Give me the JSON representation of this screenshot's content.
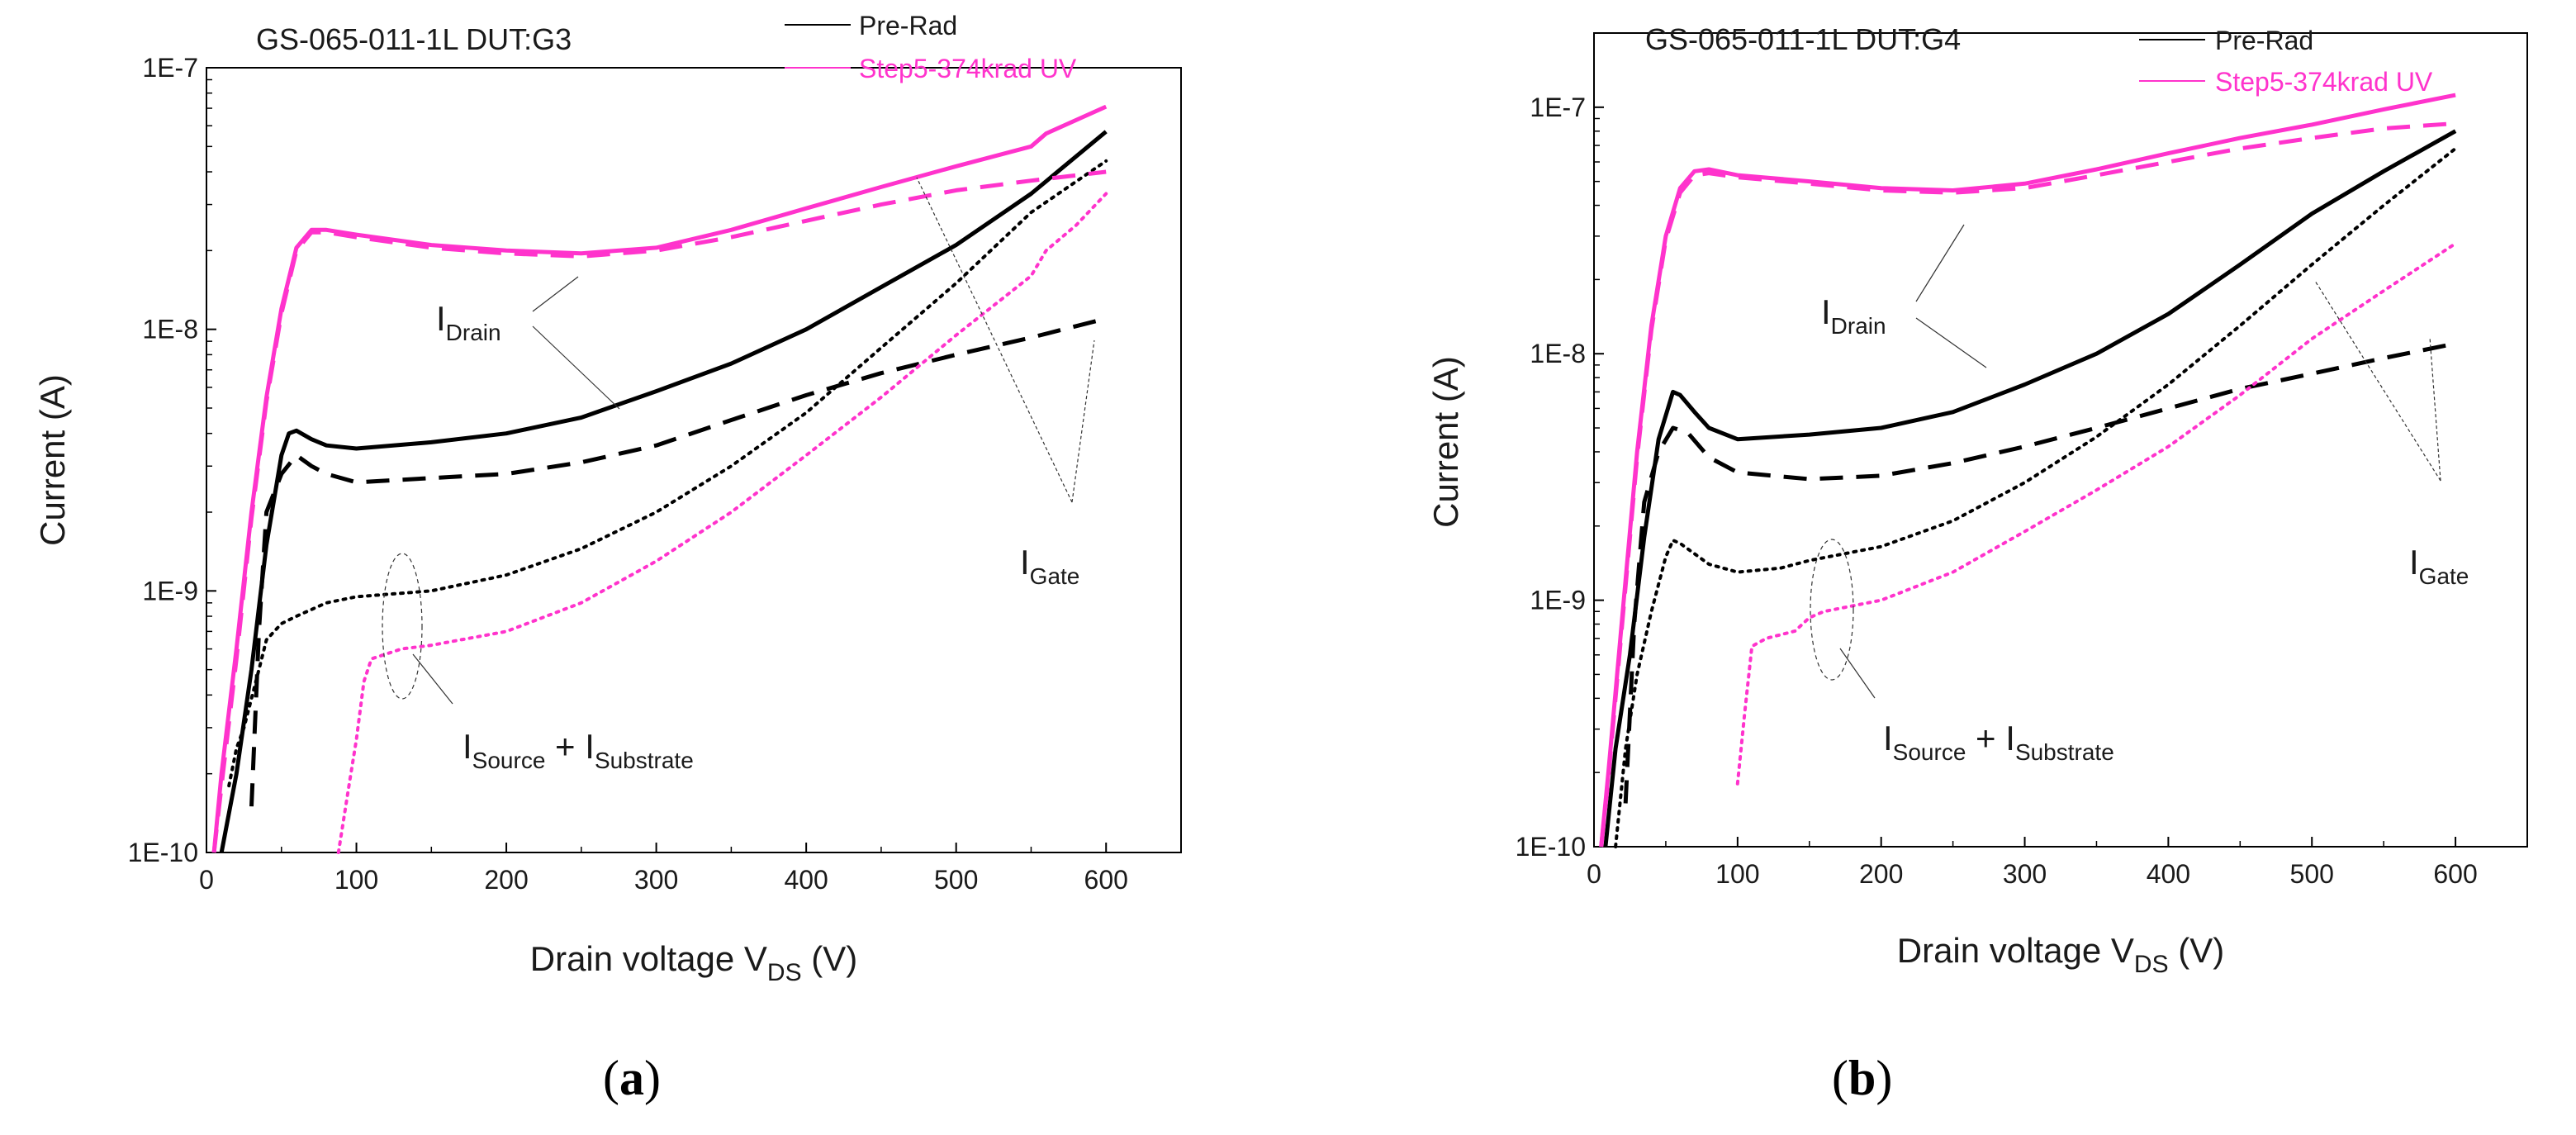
{
  "chart_data": [
    {
      "id": "a",
      "type": "line",
      "title": "GS-065-011-1L  DUT:G3",
      "xlabel_main": "Drain voltage V",
      "xlabel_sub": "DS",
      "xlabel_unit": " (V)",
      "ylabel": "Current (A)",
      "xlim": [
        0,
        650
      ],
      "ylim": [
        1e-10,
        1e-07
      ],
      "yscale": "log",
      "x_ticks": [
        "0",
        "100",
        "200",
        "300",
        "400",
        "500",
        "600"
      ],
      "y_ticks": [
        "1E-10",
        "1E-9",
        "1E-8",
        "1E-7"
      ],
      "legend": [
        {
          "label": "Pre-Rad",
          "color": "#000000"
        },
        {
          "label": "Step5-374krad UV",
          "color": "#ff33cc"
        }
      ],
      "annotations": {
        "drain": {
          "main": "I",
          "sub": "Drain"
        },
        "gate": {
          "main": "I",
          "sub": "Gate"
        },
        "source": {
          "main": "I",
          "sub": "Source",
          "plus": " + ",
          "main2": "I",
          "sub2": "Substrate"
        }
      },
      "series": [
        {
          "name": "I_Drain Pre-Rad",
          "color": "#000000",
          "style": "solid",
          "x": [
            10,
            20,
            30,
            40,
            50,
            55,
            60,
            70,
            80,
            100,
            150,
            200,
            250,
            300,
            350,
            400,
            450,
            500,
            550,
            600
          ],
          "y": [
            1e-10,
            2e-10,
            5e-10,
            1.5e-09,
            3.3e-09,
            4e-09,
            4.1e-09,
            3.8e-09,
            3.6e-09,
            3.5e-09,
            3.7e-09,
            4e-09,
            4.6e-09,
            5.8e-09,
            7.4e-09,
            1e-08,
            1.45e-08,
            2.1e-08,
            3.3e-08,
            5.7e-08
          ]
        },
        {
          "name": "I_Gate Pre-Rad",
          "color": "#000000",
          "style": "dash",
          "x": [
            30,
            35,
            40,
            50,
            60,
            70,
            80,
            100,
            150,
            200,
            250,
            300,
            350,
            400,
            450,
            500,
            550,
            600
          ],
          "y": [
            1.5e-10,
            7e-10,
            2e-09,
            2.8e-09,
            3.3e-09,
            3e-09,
            2.8e-09,
            2.6e-09,
            2.7e-09,
            2.8e-09,
            3.1e-09,
            3.6e-09,
            4.5e-09,
            5.6e-09,
            6.8e-09,
            8e-09,
            9.3e-09,
            1.1e-08
          ]
        },
        {
          "name": "I_Source+I_Substrate Pre-Rad",
          "color": "#000000",
          "style": "dot",
          "x": [
            15,
            20,
            25,
            35,
            40,
            50,
            60,
            80,
            100,
            150,
            200,
            250,
            300,
            350,
            400,
            450,
            500,
            550,
            600
          ],
          "y": [
            1.8e-10,
            2.5e-10,
            3e-10,
            5e-10,
            6.5e-10,
            7.5e-10,
            8e-10,
            9e-10,
            9.5e-10,
            1e-09,
            1.15e-09,
            1.45e-09,
            2e-09,
            3e-09,
            4.8e-09,
            8.5e-09,
            1.5e-08,
            2.8e-08,
            4.4e-08
          ]
        },
        {
          "name": "I_Drain Step5",
          "color": "#ff33cc",
          "style": "solid",
          "x": [
            5,
            10,
            20,
            30,
            40,
            50,
            60,
            70,
            80,
            100,
            150,
            200,
            250,
            300,
            350,
            400,
            450,
            500,
            550,
            560,
            600
          ],
          "y": [
            1e-10,
            2e-10,
            6e-10,
            2e-09,
            5.5e-09,
            1.2e-08,
            2.05e-08,
            2.4e-08,
            2.4e-08,
            2.3e-08,
            2.1e-08,
            2e-08,
            1.95e-08,
            2.05e-08,
            2.4e-08,
            2.9e-08,
            3.5e-08,
            4.2e-08,
            5e-08,
            5.6e-08,
            7.1e-08
          ]
        },
        {
          "name": "I_Gate Step5",
          "color": "#ff33cc",
          "style": "dash",
          "x": [
            5,
            10,
            20,
            30,
            40,
            50,
            60,
            70,
            80,
            100,
            150,
            200,
            250,
            300,
            350,
            400,
            450,
            500,
            550,
            600
          ],
          "y": [
            1e-10,
            1.8e-10,
            5.5e-10,
            1.9e-09,
            5.3e-09,
            1.15e-08,
            2e-08,
            2.35e-08,
            2.35e-08,
            2.25e-08,
            2.05e-08,
            1.95e-08,
            1.9e-08,
            2e-08,
            2.25e-08,
            2.6e-08,
            3e-08,
            3.4e-08,
            3.7e-08,
            4e-08
          ]
        },
        {
          "name": "I_Source+I_Substrate Step5",
          "color": "#ff33cc",
          "style": "dot",
          "x": [
            88,
            95,
            100,
            105,
            110,
            130,
            150,
            200,
            250,
            300,
            350,
            400,
            450,
            500,
            550,
            560,
            580,
            600
          ],
          "y": [
            1e-10,
            1.8e-10,
            2.7e-10,
            4.5e-10,
            5.5e-10,
            6e-10,
            6.2e-10,
            7e-10,
            9e-10,
            1.3e-09,
            2e-09,
            3.3e-09,
            5.5e-09,
            9.5e-09,
            1.6e-08,
            2e-08,
            2.5e-08,
            3.3e-08
          ]
        }
      ]
    },
    {
      "id": "b",
      "type": "line",
      "title": "GS-065-011-1L  DUT:G4",
      "xlabel_main": "Drain voltage V",
      "xlabel_sub": "DS",
      "xlabel_unit": " (V)",
      "ylabel": "Current (A)",
      "xlim": [
        0,
        650
      ],
      "ylim": [
        1e-10,
        2e-07
      ],
      "yscale": "log",
      "x_ticks": [
        "0",
        "100",
        "200",
        "300",
        "400",
        "500",
        "600"
      ],
      "y_ticks": [
        "1E-10",
        "1E-9",
        "1E-8",
        "1E-7"
      ],
      "legend": [
        {
          "label": "Pre-Rad",
          "color": "#000000"
        },
        {
          "label": "Step5-374krad UV",
          "color": "#ff33cc"
        }
      ],
      "annotations": {
        "drain": {
          "main": "I",
          "sub": "Drain"
        },
        "gate": {
          "main": "I",
          "sub": "Gate"
        },
        "source": {
          "main": "I",
          "sub": "Source",
          "plus": " + ",
          "main2": "I",
          "sub2": "Substrate"
        }
      },
      "series": [
        {
          "name": "I_Drain Pre-Rad",
          "color": "#000000",
          "style": "solid",
          "x": [
            8,
            15,
            25,
            35,
            45,
            55,
            60,
            70,
            80,
            100,
            150,
            200,
            250,
            300,
            350,
            400,
            450,
            500,
            550,
            600
          ],
          "y": [
            1e-10,
            2.5e-10,
            6e-10,
            1.8e-09,
            4.5e-09,
            7e-09,
            6.8e-09,
            5.8e-09,
            5e-09,
            4.5e-09,
            4.7e-09,
            5e-09,
            5.8e-09,
            7.5e-09,
            1e-08,
            1.45e-08,
            2.3e-08,
            3.7e-08,
            5.5e-08,
            8e-08
          ]
        },
        {
          "name": "I_Gate Pre-Rad",
          "color": "#000000",
          "style": "dash",
          "x": [
            22,
            28,
            35,
            45,
            55,
            65,
            80,
            100,
            150,
            200,
            250,
            300,
            350,
            400,
            450,
            500,
            550,
            600
          ],
          "y": [
            1.5e-10,
            8e-10,
            2.5e-09,
            4e-09,
            5e-09,
            4.8e-09,
            3.8e-09,
            3.3e-09,
            3.1e-09,
            3.2e-09,
            3.6e-09,
            4.2e-09,
            5e-09,
            6e-09,
            7.2e-09,
            8.3e-09,
            9.6e-09,
            1.1e-08
          ]
        },
        {
          "name": "I_Source+I_Substrate Pre-Rad",
          "color": "#000000",
          "style": "dot",
          "x": [
            15,
            22,
            30,
            40,
            50,
            55,
            60,
            80,
            100,
            130,
            150,
            200,
            250,
            300,
            350,
            400,
            450,
            500,
            550,
            600
          ],
          "y": [
            1e-10,
            2.5e-10,
            5e-10,
            9e-10,
            1.5e-09,
            1.75e-09,
            1.7e-09,
            1.4e-09,
            1.3e-09,
            1.35e-09,
            1.45e-09,
            1.65e-09,
            2.1e-09,
            3e-09,
            4.6e-09,
            7.5e-09,
            1.3e-08,
            2.3e-08,
            4e-08,
            6.8e-08
          ]
        },
        {
          "name": "I_Drain Step5",
          "color": "#ff33cc",
          "style": "solid",
          "x": [
            5,
            10,
            20,
            30,
            40,
            50,
            60,
            70,
            80,
            100,
            150,
            200,
            250,
            300,
            350,
            400,
            450,
            500,
            550,
            600
          ],
          "y": [
            1e-10,
            2e-10,
            9e-10,
            4e-09,
            1.3e-08,
            3e-08,
            4.7e-08,
            5.5e-08,
            5.6e-08,
            5.3e-08,
            5e-08,
            4.7e-08,
            4.6e-08,
            4.9e-08,
            5.6e-08,
            6.5e-08,
            7.5e-08,
            8.5e-08,
            9.8e-08,
            1.12e-07
          ]
        },
        {
          "name": "I_Gate Step5",
          "color": "#ff33cc",
          "style": "dash",
          "x": [
            5,
            10,
            20,
            30,
            40,
            50,
            60,
            70,
            80,
            100,
            150,
            200,
            250,
            300,
            350,
            400,
            450,
            500,
            550,
            600
          ],
          "y": [
            1e-10,
            1.9e-10,
            8.5e-10,
            3.8e-09,
            1.25e-08,
            2.9e-08,
            4.5e-08,
            5.3e-08,
            5.4e-08,
            5.2e-08,
            4.9e-08,
            4.6e-08,
            4.5e-08,
            4.7e-08,
            5.3e-08,
            6e-08,
            6.8e-08,
            7.5e-08,
            8.2e-08,
            8.6e-08
          ]
        },
        {
          "name": "I_Source+I_Substrate Step5",
          "color": "#ff33cc",
          "style": "dot",
          "x": [
            100,
            105,
            110,
            120,
            140,
            150,
            160,
            200,
            250,
            300,
            350,
            400,
            450,
            500,
            550,
            600
          ],
          "y": [
            1.8e-10,
            3.5e-10,
            6.5e-10,
            7e-10,
            7.5e-10,
            8.5e-10,
            9e-10,
            1e-09,
            1.3e-09,
            1.9e-09,
            2.8e-09,
            4.2e-09,
            6.8e-09,
            1.15e-08,
            1.8e-08,
            2.8e-08
          ]
        }
      ]
    }
  ],
  "captions": [
    "(a)",
    "(b)"
  ]
}
